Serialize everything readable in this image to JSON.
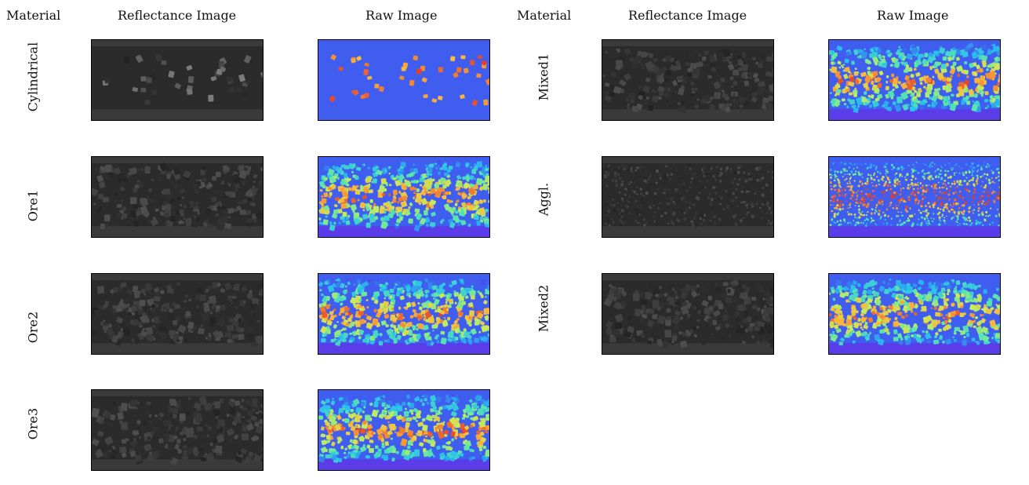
{
  "headers": {
    "left": {
      "material": "Material",
      "reflectance": "Reflectance Image",
      "raw": "Raw Image"
    },
    "right": {
      "material": "Material",
      "reflectance": "Reflectance Image",
      "raw": "Raw Image"
    }
  },
  "left_rows": [
    {
      "label": "Cylindrical"
    },
    {
      "label": "Ore1"
    },
    {
      "label": "Ore2"
    },
    {
      "label": "Ore3"
    }
  ],
  "right_rows": [
    {
      "label": "Mixed1"
    },
    {
      "label": "Aggl."
    },
    {
      "label": "Mixed2"
    }
  ],
  "colors": {
    "raw_background": "#3f5ef0",
    "raw_floor": "#5a3ce8",
    "reflectance_background": "#3a3a3a",
    "reflectance_belt": "#2b2b2b"
  }
}
